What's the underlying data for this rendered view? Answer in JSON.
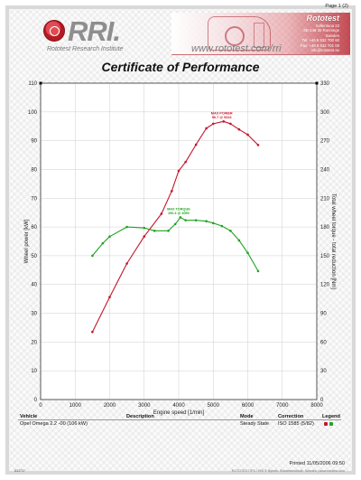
{
  "page": {
    "number": "Page 1 (2)",
    "printed": "Printed 11/05/2006 09:50",
    "footer_id": "833737",
    "footer_copy": "ROTOTEST IPS / RRI ® Nyhets: Rototestinstitute, Sweden | www.rototest.com"
  },
  "header": {
    "logo_text": "RRI.",
    "logo_sub": "Rototest Research Institute",
    "website": "www.rototest.com/rri",
    "brand": "Rototest",
    "address": [
      "Sollentuna 23",
      "SE-148 30 Ronninge",
      "Sweden",
      "Tel: +46 8 532 700 60",
      "Fax: +46 8 532 701 00",
      "info@rototest.se"
    ]
  },
  "title": "Certificate of Performance",
  "chart_data": {
    "type": "line",
    "xlabel": "Engine speed [1/min]",
    "ylabel_left": "Wheel power [kW]",
    "ylabel_right": "Total wheel torque - total reduction [Nm]",
    "xlim": [
      0,
      8000
    ],
    "ylim_left": [
      0,
      110
    ],
    "ylim_right": [
      0,
      330
    ],
    "x_ticks": [
      0,
      1000,
      2000,
      3000,
      4000,
      5000,
      6000,
      7000,
      8000
    ],
    "y_ticks_left": [
      0,
      10,
      20,
      30,
      40,
      50,
      60,
      70,
      80,
      90,
      100,
      110
    ],
    "y_ticks_right": [
      0,
      30,
      60,
      90,
      120,
      150,
      180,
      210,
      240,
      270,
      300,
      330
    ],
    "grid": true,
    "series": [
      {
        "axis": "left",
        "color": "#c4162c",
        "points": [
          [
            1500,
            23.5
          ],
          [
            2000,
            35.6
          ],
          [
            2500,
            47.3
          ],
          [
            3000,
            56.7
          ],
          [
            3500,
            64.6
          ],
          [
            3800,
            72.5
          ],
          [
            4000,
            79.5
          ],
          [
            4200,
            82.6
          ],
          [
            4500,
            88.6
          ],
          [
            4800,
            94.3
          ],
          [
            5000,
            95.9
          ],
          [
            5300,
            96.7
          ],
          [
            5500,
            95.9
          ],
          [
            5750,
            93.9
          ],
          [
            6000,
            92.1
          ],
          [
            6300,
            88.5
          ]
        ],
        "marker_label": "MAX POWER",
        "marker_value": "96.7 @ 5313"
      },
      {
        "axis": "right",
        "color": "#22a322",
        "points": [
          [
            1500,
            150
          ],
          [
            1800,
            163
          ],
          [
            2000,
            170
          ],
          [
            2500,
            180
          ],
          [
            3000,
            179
          ],
          [
            3300,
            176
          ],
          [
            3700,
            176
          ],
          [
            3900,
            183
          ],
          [
            4050,
            190
          ],
          [
            4200,
            187
          ],
          [
            4500,
            187
          ],
          [
            4800,
            186
          ],
          [
            5000,
            184
          ],
          [
            5250,
            181
          ],
          [
            5500,
            176
          ],
          [
            5750,
            166
          ],
          [
            6000,
            153
          ],
          [
            6300,
            134
          ]
        ],
        "marker_label": "MAX TORQUE",
        "marker_value": "190.4 @ 4050"
      }
    ]
  },
  "table": {
    "headers": {
      "vehicle": "Vehicle",
      "description": "Description",
      "mode": "Mode",
      "correction": "Correction",
      "legend": "Legend"
    },
    "row": {
      "vehicle": "Opel Omega 2.2 -00 (106 kW)",
      "description": "",
      "mode": "Steady State",
      "correction": "ISO 1585 (5/82)"
    },
    "legend_colors": [
      "#c4162c",
      "#22a322"
    ]
  }
}
